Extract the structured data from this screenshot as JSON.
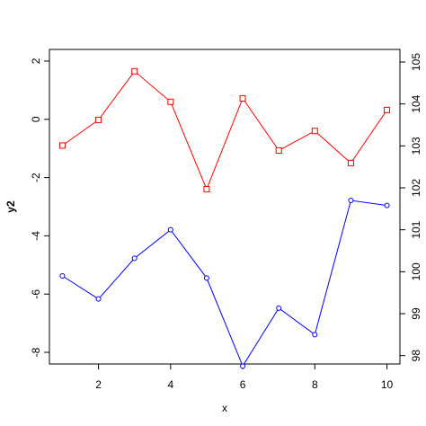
{
  "chart_data": {
    "type": "line",
    "xlabel": "x",
    "ylabel_left": "y2",
    "ylabel_right": "",
    "x": [
      1,
      2,
      3,
      4,
      5,
      6,
      7,
      8,
      9,
      10
    ],
    "xlim": [
      0.64,
      10.36
    ],
    "xticks": [
      2,
      4,
      6,
      8,
      10
    ],
    "ylim_left": [
      -8.4,
      2.4
    ],
    "yticks_left": [
      -8,
      -6,
      -4,
      -2,
      0,
      2
    ],
    "ylim_right": [
      97.8,
      105.3
    ],
    "yticks_right": [
      98,
      99,
      100,
      101,
      102,
      103,
      104,
      105
    ],
    "series": [
      {
        "name": "",
        "axis": "left",
        "color": "#ff0000",
        "marker": "square",
        "values": [
          -0.9,
          -0.02,
          1.65,
          0.6,
          -2.4,
          0.72,
          -1.07,
          -0.4,
          -1.5,
          0.32
        ]
      },
      {
        "name": "",
        "axis": "right",
        "color": "#0000ff",
        "marker": "circle",
        "values": [
          99.9,
          99.35,
          100.32,
          101.0,
          99.85,
          97.75,
          99.13,
          98.5,
          101.7,
          101.58
        ]
      }
    ]
  }
}
